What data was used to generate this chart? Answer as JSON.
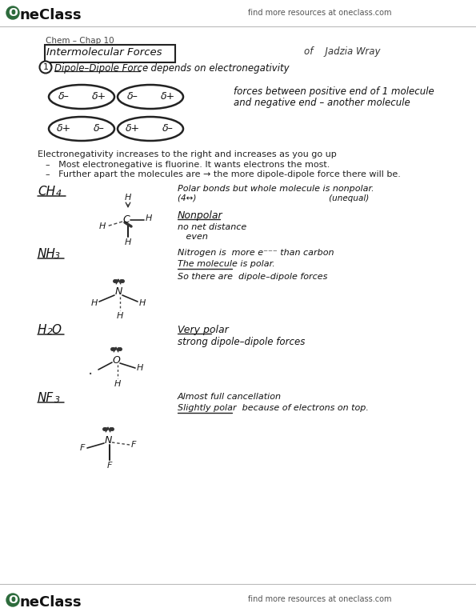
{
  "bg_color": "#f5f5f0",
  "page_color": "#fafaf7",
  "logo_color": "#2d6b3c",
  "text_color": "#1a1a1a",
  "header_right": "find more resources at oneclass.com",
  "footer_right": "find more resources at oneclass.com",
  "chap": "Chem – Chap 10",
  "title": "Intermolecular Forces",
  "author": "of    Jadzia Wray",
  "s1": "Dipole–Dipole Force : depends on electronegativity",
  "dc1": "forces between positive end of 1 molecule",
  "dc2": "and negative end – another molecule",
  "en": "Electronegativity increases to the right and increases as you go up",
  "b1": "Most electronegative is fluorine. It wants electrons the most.",
  "b2": "Further apart the molecules are → the more dipole-dipole force there will be.",
  "ch4_n1": "Polar bonds but whole molecule is nonpolar.",
  "ch4_n2": "(4↔)                                                   (unequal)",
  "ch4_n3": "Nonpolar",
  "ch4_n4": "no net distance",
  "ch4_n5": "   even",
  "nh3_n1": "Nitrogen is  more e⁻⁻⁻ than carbon",
  "nh3_n2": "The molecule is polar.",
  "nh3_n3": "So there are  dipole–dipole forces",
  "h2o_n1": "Very polar",
  "h2o_n2": "strong dipole–dipole forces",
  "nf3_n1": "Almost full cancellation",
  "nf3_n2": "Slightly polar  because of electrons on top."
}
